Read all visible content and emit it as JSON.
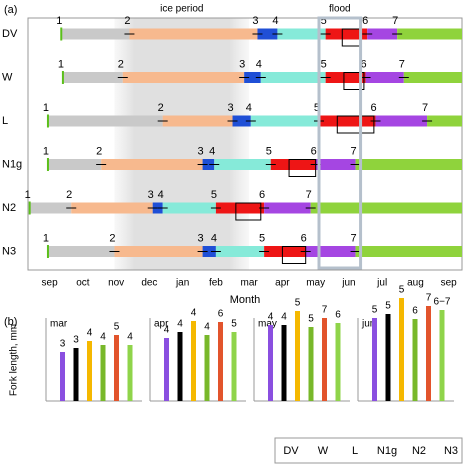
{
  "chart_data": [
    {
      "type": "timeline",
      "panel_label": "(a)",
      "x_label": "Month",
      "categories": [
        "sep",
        "oct",
        "nov",
        "dec",
        "jan",
        "feb",
        "mar",
        "apr",
        "may",
        "jun",
        "jul",
        "aug",
        "sep"
      ],
      "xlim": [
        -0.65,
        12.4
      ],
      "ice_period": {
        "label": "ice period",
        "range": [
          1.95,
          6.0
        ]
      },
      "flood": {
        "label": "flood",
        "range": [
          8.1,
          9.35
        ]
      },
      "stage_labels": [
        "1",
        "2",
        "3",
        "4",
        "5",
        "6",
        "7"
      ],
      "segment_colors": [
        "#c9c9c9",
        "#f7b98e",
        "#1f4fd6",
        "#86ead9",
        "#ee1515",
        "#a546e2",
        "#8fd33c"
      ],
      "rows": [
        {
          "name": "DV",
          "color": "#9b30d9",
          "stages": [
            0.35,
            2.4,
            6.25,
            6.85,
            8.3,
            9.55,
            10.45
          ],
          "box": [
            8.8,
            9.35
          ]
        },
        {
          "name": "W",
          "color": "#000000",
          "stages": [
            0.4,
            2.2,
            5.85,
            6.35,
            8.3,
            9.5,
            10.65
          ],
          "box": [
            8.85,
            9.45
          ]
        },
        {
          "name": "L",
          "color": "#e0a800",
          "stages": [
            -0.05,
            3.4,
            5.5,
            6.05,
            8.1,
            9.8,
            11.35
          ],
          "box": [
            8.65,
            9.75
          ]
        },
        {
          "name": "N1g",
          "color": "#6aaa1a",
          "stages": [
            -0.05,
            1.55,
            4.6,
            4.95,
            6.65,
            8.0,
            9.2
          ],
          "box": [
            7.2,
            8.0
          ]
        },
        {
          "name": "N2",
          "color": "#d0246e",
          "stages": [
            -0.6,
            0.65,
            3.1,
            3.4,
            5.0,
            6.45,
            7.85
          ],
          "box": [
            5.6,
            6.35
          ]
        },
        {
          "name": "N3",
          "color": "#6ac42a",
          "stages": [
            -0.05,
            1.95,
            4.6,
            5.0,
            6.45,
            7.7,
            9.2
          ],
          "box": [
            7.0,
            7.7
          ]
        }
      ]
    },
    {
      "type": "bar",
      "panel_label": "(b)",
      "y_label": "Fork length, mm",
      "ylim": [
        0,
        110
      ],
      "series": [
        {
          "name": "DV",
          "color": "#8a4fe0"
        },
        {
          "name": "W",
          "color": "#000000"
        },
        {
          "name": "L",
          "color": "#f5b800"
        },
        {
          "name": "N1g",
          "color": "#78b82a"
        },
        {
          "name": "N2",
          "color": "#e2542c"
        },
        {
          "name": "N3",
          "color": "#8fd44a"
        }
      ],
      "groups": [
        {
          "title": "mar",
          "values": [
            49,
            53,
            60,
            56,
            66,
            56
          ],
          "stage_labels": [
            "3",
            "3",
            "4",
            "4",
            "5",
            "4"
          ]
        },
        {
          "title": "apr",
          "values": [
            63,
            69,
            80,
            66,
            79,
            69
          ],
          "stage_labels": [
            "4",
            "4",
            "4",
            "4",
            "6",
            "5"
          ]
        },
        {
          "title": "may",
          "values": [
            76,
            76,
            90,
            74,
            83,
            78
          ],
          "stage_labels": [
            "4",
            "4",
            "5",
            "5",
            "7",
            "6"
          ]
        },
        {
          "title": "jun",
          "values": [
            83,
            87,
            103,
            82,
            95,
            91
          ],
          "stage_labels": [
            "5",
            "5",
            "5",
            "6",
            "7",
            "6−7"
          ]
        }
      ]
    }
  ]
}
